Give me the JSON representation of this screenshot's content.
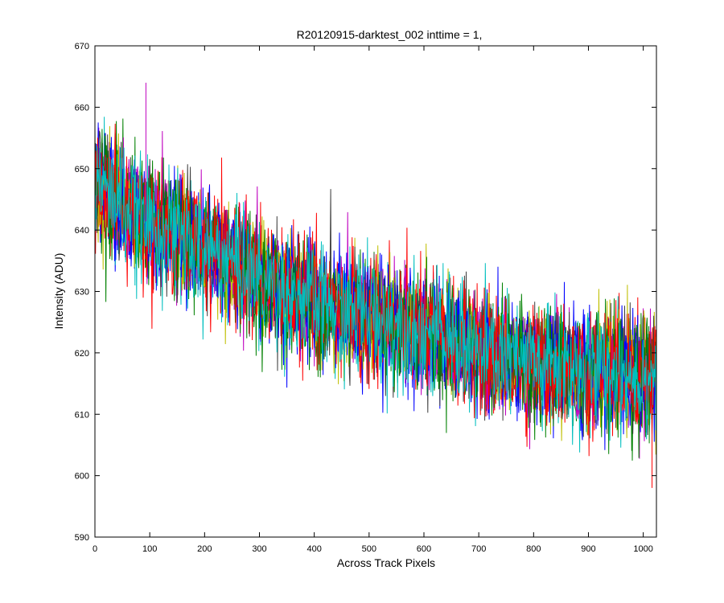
{
  "chart_data": {
    "type": "line",
    "title": "R20120915-darktest_002 inttime = 1,",
    "xlabel": "Across Track Pixels",
    "ylabel": "Intensity (ADU)",
    "xlim": [
      0,
      1024
    ],
    "ylim": [
      590,
      670
    ],
    "xticks": [
      0,
      100,
      200,
      300,
      400,
      500,
      600,
      700,
      800,
      900,
      1000
    ],
    "yticks": [
      590,
      600,
      610,
      620,
      630,
      640,
      650,
      660,
      670
    ],
    "grid": false,
    "legend": "none",
    "series_colors": [
      "#0000ff",
      "#008000",
      "#ff0000",
      "#00bfbf",
      "#bf00bf",
      "#bfbf00",
      "#404040",
      "#0000ff",
      "#008000",
      "#ff0000",
      "#00bfbf"
    ],
    "trend": {
      "x": [
        0,
        50,
        100,
        150,
        200,
        250,
        300,
        350,
        400,
        450,
        500,
        550,
        600,
        650,
        700,
        750,
        800,
        850,
        900,
        950,
        1024
      ],
      "y": [
        648,
        644,
        641,
        639,
        637,
        635,
        632,
        630,
        628,
        627,
        626,
        625,
        623,
        622,
        620,
        619,
        618,
        618,
        617,
        617,
        616
      ]
    },
    "noise_amplitude": 6,
    "notes_on_extremes": {
      "max_peak": {
        "x": 93,
        "y": 664
      },
      "min_trough": {
        "x": 1016,
        "y": 598
      }
    }
  }
}
